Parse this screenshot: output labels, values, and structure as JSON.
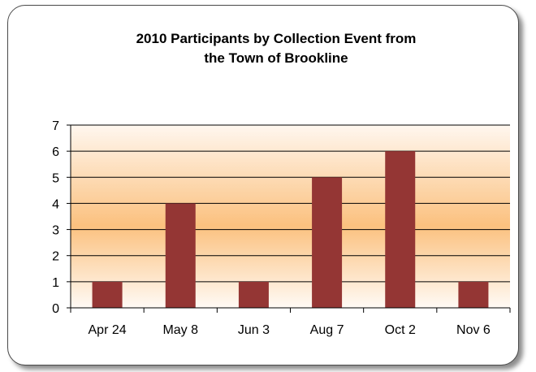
{
  "chart_data": {
    "type": "bar",
    "title_lines": [
      "2010 Participants by Collection Event from",
      "the Town of Brookline"
    ],
    "categories": [
      "Apr 24",
      "May 8",
      "Jun 3",
      "Aug 7",
      "Oct 2",
      "Nov 6"
    ],
    "values": [
      1,
      4,
      1,
      5,
      6,
      1
    ],
    "xlabel": "",
    "ylabel": "",
    "ylim": [
      0,
      7
    ],
    "yticks": [
      "0",
      "1",
      "2",
      "3",
      "4",
      "5",
      "6",
      "7"
    ],
    "grid": true,
    "legend": "none",
    "bar_color": "#943634",
    "plot_background": [
      "#fff7ef",
      "#fbc17f",
      "#fffaf5"
    ]
  }
}
